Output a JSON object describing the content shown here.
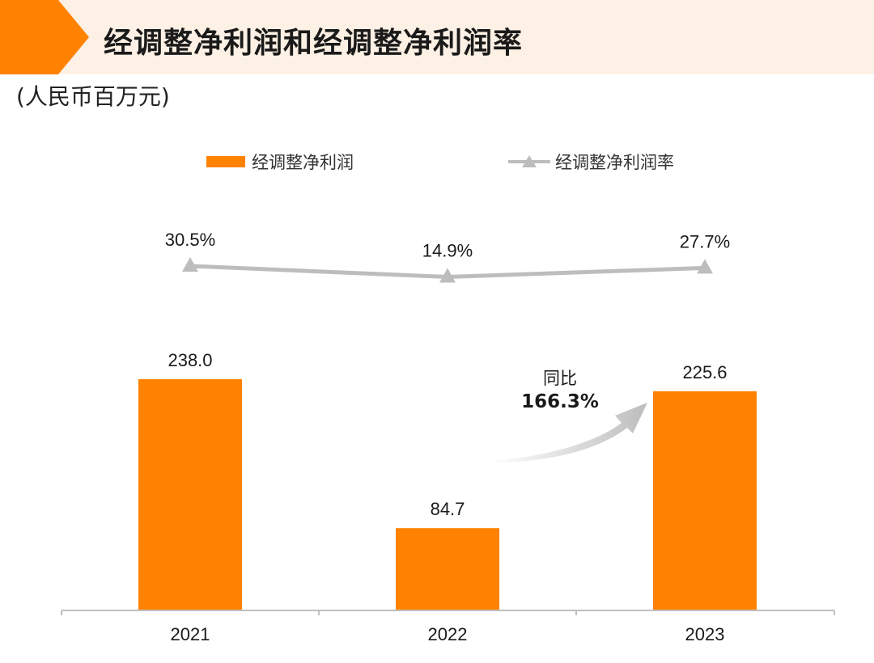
{
  "header": {
    "title": "经调整净利润和经调整净利润率",
    "unit": "(人民币百万元)"
  },
  "legend": {
    "bar_label": "经调整净利润",
    "line_label": "经调整净利润率"
  },
  "annotation": {
    "label": "同比",
    "value": "166.3%"
  },
  "colors": {
    "bar": "#ff8200",
    "line": "#bdbdbd",
    "header_band": "#fdf0e4",
    "axis": "#bfbfbf"
  },
  "chart_data": {
    "type": "bar",
    "categories": [
      "2021",
      "2022",
      "2023"
    ],
    "series": [
      {
        "name": "经调整净利润",
        "type": "bar",
        "values": [
          238.0,
          84.7,
          225.6
        ],
        "labels": [
          "238.0",
          "84.7",
          "225.6"
        ]
      },
      {
        "name": "经调整净利润率",
        "type": "line",
        "values": [
          30.5,
          14.9,
          27.7
        ],
        "labels": [
          "30.5%",
          "14.9%",
          "27.7%"
        ]
      }
    ],
    "ylabel": "(人民币百万元)",
    "grid": false,
    "legend_position": "top"
  }
}
